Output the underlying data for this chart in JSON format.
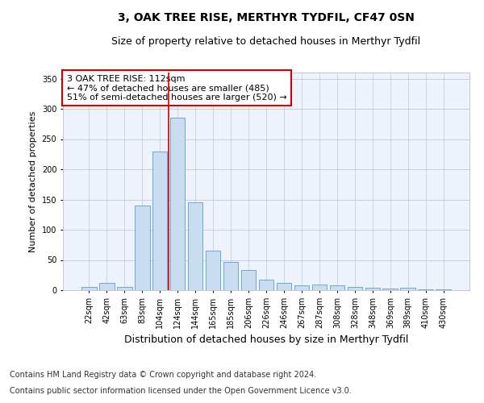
{
  "title1": "3, OAK TREE RISE, MERTHYR TYDFIL, CF47 0SN",
  "title2": "Size of property relative to detached houses in Merthyr Tydfil",
  "xlabel": "Distribution of detached houses by size in Merthyr Tydfil",
  "ylabel": "Number of detached properties",
  "categories": [
    "22sqm",
    "42sqm",
    "63sqm",
    "83sqm",
    "104sqm",
    "124sqm",
    "144sqm",
    "165sqm",
    "185sqm",
    "206sqm",
    "226sqm",
    "246sqm",
    "267sqm",
    "287sqm",
    "308sqm",
    "328sqm",
    "348sqm",
    "369sqm",
    "389sqm",
    "410sqm",
    "430sqm"
  ],
  "values": [
    5,
    12,
    5,
    140,
    230,
    285,
    145,
    65,
    47,
    33,
    17,
    12,
    8,
    10,
    8,
    6,
    4,
    3,
    4,
    2,
    2
  ],
  "bar_color": "#c9dcf0",
  "bar_edge_color": "#6aaad4",
  "vline_color": "#cc0000",
  "vline_index": 4.5,
  "annotation_text": "3 OAK TREE RISE: 112sqm\n← 47% of detached houses are smaller (485)\n51% of semi-detached houses are larger (520) →",
  "annotation_box_color": "#ffffff",
  "annotation_box_edge": "#cc0000",
  "ylim": [
    0,
    360
  ],
  "yticks": [
    0,
    50,
    100,
    150,
    200,
    250,
    300,
    350
  ],
  "footer1": "Contains HM Land Registry data © Crown copyright and database right 2024.",
  "footer2": "Contains public sector information licensed under the Open Government Licence v3.0.",
  "plot_bg_color": "#eef2fa",
  "title1_fontsize": 10,
  "title2_fontsize": 9,
  "xlabel_fontsize": 9,
  "ylabel_fontsize": 8,
  "tick_fontsize": 7,
  "footer_fontsize": 7,
  "annotation_fontsize": 8
}
